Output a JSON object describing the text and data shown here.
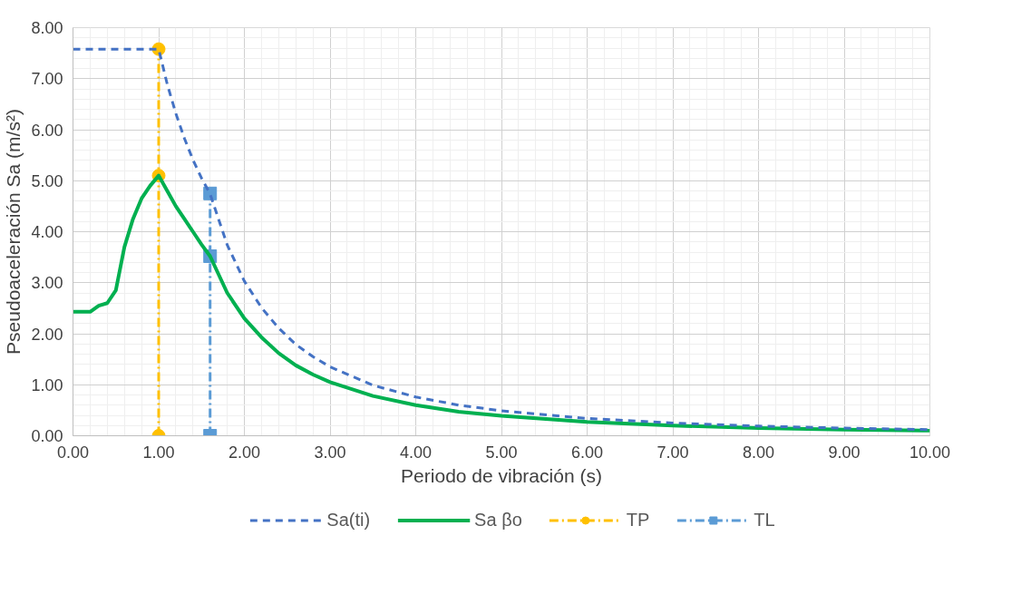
{
  "chart_data": {
    "type": "line",
    "xlabel": "Periodo de vibración (s)",
    "ylabel": "Pseudoaceleración Sa (m/s²)",
    "xlim": [
      0,
      10
    ],
    "ylim": [
      0,
      8
    ],
    "xticks": [
      {
        "value": 0,
        "label": "0.00"
      },
      {
        "value": 1,
        "label": "1.00"
      },
      {
        "value": 2,
        "label": "2.00"
      },
      {
        "value": 3,
        "label": "3.00"
      },
      {
        "value": 4,
        "label": "4.00"
      },
      {
        "value": 5,
        "label": "5.00"
      },
      {
        "value": 6,
        "label": "6.00"
      },
      {
        "value": 7,
        "label": "7.00"
      },
      {
        "value": 8,
        "label": "8.00"
      },
      {
        "value": 9,
        "label": "9.00"
      },
      {
        "value": 10,
        "label": "10.00"
      }
    ],
    "yticks": [
      {
        "value": 0,
        "label": "0.00"
      },
      {
        "value": 1,
        "label": "1.00"
      },
      {
        "value": 2,
        "label": "2.00"
      },
      {
        "value": 3,
        "label": "3.00"
      },
      {
        "value": 4,
        "label": "4.00"
      },
      {
        "value": 5,
        "label": "5.00"
      },
      {
        "value": 6,
        "label": "6.00"
      },
      {
        "value": 7,
        "label": "7.00"
      },
      {
        "value": 8,
        "label": "8.00"
      }
    ],
    "grid": true,
    "legend": "bottom",
    "series": [
      {
        "name": "Sa(ti)",
        "color": "#4472c4",
        "line_style": "dashed",
        "marker": "none",
        "x": [
          0,
          1,
          1.1,
          1.2,
          1.3,
          1.4,
          1.5,
          1.6,
          1.8,
          2,
          2.2,
          2.4,
          2.6,
          2.8,
          3,
          3.5,
          4,
          4.5,
          5,
          6,
          7,
          8,
          9,
          10
        ],
        "values": [
          7.58,
          7.58,
          6.89,
          6.32,
          5.83,
          5.41,
          5.05,
          4.74,
          3.74,
          3.03,
          2.51,
          2.11,
          1.79,
          1.55,
          1.35,
          0.99,
          0.76,
          0.6,
          0.49,
          0.34,
          0.25,
          0.19,
          0.15,
          0.12
        ]
      },
      {
        "name": "Sa βo",
        "color": "#00b050",
        "line_style": "solid",
        "marker": "none",
        "x": [
          0,
          0.2,
          0.3,
          0.4,
          0.5,
          0.6,
          0.7,
          0.8,
          0.9,
          1,
          1.1,
          1.2,
          1.3,
          1.4,
          1.5,
          1.6,
          1.8,
          2,
          2.2,
          2.4,
          2.6,
          2.8,
          3,
          3.5,
          4,
          4.5,
          5,
          6,
          7,
          8,
          9,
          10
        ],
        "values": [
          2.43,
          2.43,
          2.55,
          2.6,
          2.85,
          3.7,
          4.25,
          4.65,
          4.9,
          5.1,
          4.8,
          4.5,
          4.25,
          4.0,
          3.75,
          3.52,
          2.8,
          2.3,
          1.93,
          1.62,
          1.38,
          1.2,
          1.05,
          0.78,
          0.6,
          0.47,
          0.39,
          0.27,
          0.2,
          0.15,
          0.12,
          0.1
        ]
      },
      {
        "name": "TP",
        "color": "#ffc000",
        "line_style": "dashdot",
        "marker": "circle",
        "x": [
          1,
          1,
          1
        ],
        "values": [
          0,
          5.1,
          7.58
        ]
      },
      {
        "name": "TL",
        "color": "#5b9bd5",
        "line_style": "dashdot",
        "marker": "square",
        "x": [
          1.6,
          1.6,
          1.6
        ],
        "values": [
          0,
          3.52,
          4.75
        ]
      }
    ]
  }
}
